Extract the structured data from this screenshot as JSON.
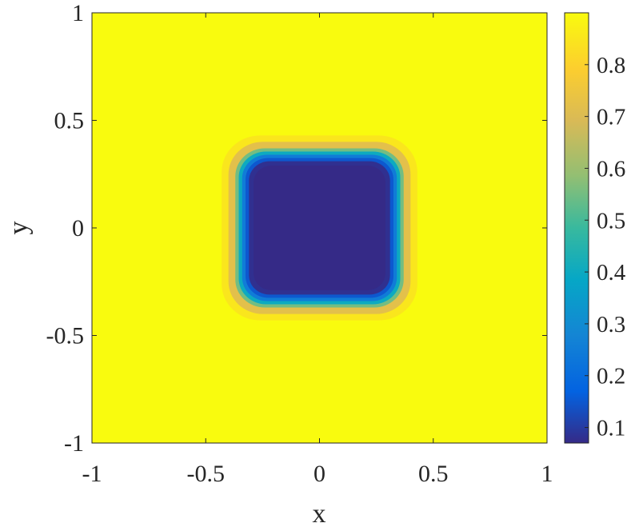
{
  "chart_data": {
    "type": "heatmap",
    "title": "",
    "xlabel": "x",
    "ylabel": "y",
    "xlim": [
      -1,
      1
    ],
    "ylim": [
      -1,
      1
    ],
    "xticks": [
      -1,
      -0.5,
      0,
      0.5,
      1
    ],
    "yticks": [
      -1,
      -0.5,
      0,
      0.5,
      1
    ],
    "xtick_labels": [
      "-1",
      "-0.5",
      "0",
      "0.5",
      "1"
    ],
    "ytick_labels": [
      "-1",
      "-0.5",
      "0",
      "0.5",
      "1"
    ],
    "colormap": "parula",
    "colorbar": {
      "position": "right",
      "range": [
        0.07,
        0.9
      ],
      "ticks": [
        0.1,
        0.2,
        0.3,
        0.4,
        0.5,
        0.6,
        0.7,
        0.8
      ],
      "tick_labels": [
        "0.1",
        "0.2",
        "0.3",
        "0.4",
        "0.5",
        "0.6",
        "0.7",
        "0.8"
      ]
    },
    "field": {
      "description_of_shape": "rounded square well centered at origin",
      "outside_value": 0.9,
      "inside_value": 0.07,
      "contours": [
        {
          "level": 0.85,
          "half_width": 0.43,
          "corner_radius": 0.17
        },
        {
          "level": 0.72,
          "half_width": 0.4,
          "corner_radius": 0.15
        },
        {
          "level": 0.55,
          "half_width": 0.37,
          "corner_radius": 0.13
        },
        {
          "level": 0.4,
          "half_width": 0.355,
          "corner_radius": 0.12
        },
        {
          "level": 0.25,
          "half_width": 0.34,
          "corner_radius": 0.11
        },
        {
          "level": 0.15,
          "half_width": 0.325,
          "corner_radius": 0.1
        },
        {
          "level": 0.08,
          "half_width": 0.31,
          "corner_radius": 0.09
        }
      ]
    },
    "grid": false
  }
}
